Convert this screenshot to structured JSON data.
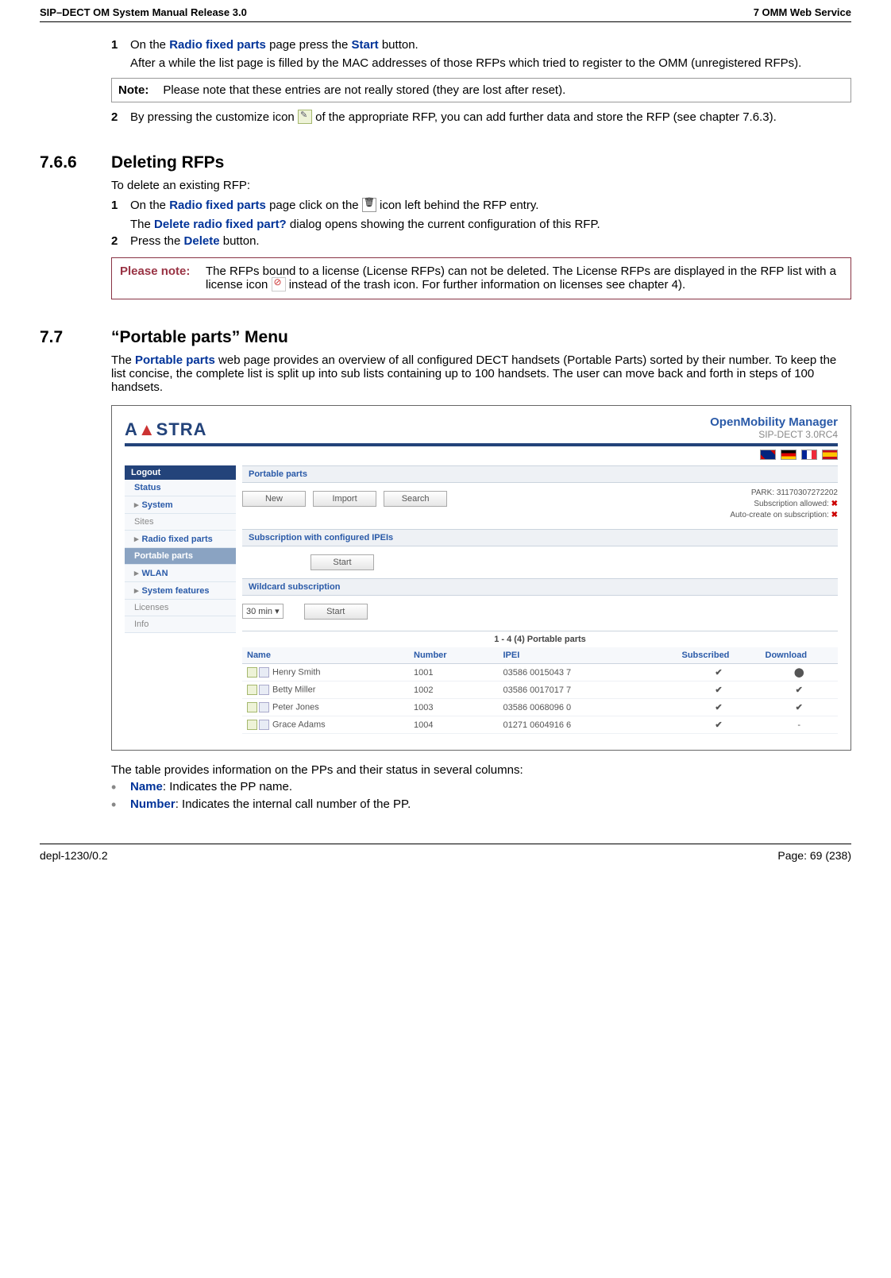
{
  "header": {
    "left": "SIP–DECT OM System Manual Release 3.0",
    "right": "7 OMM Web Service"
  },
  "step1": {
    "num": "1",
    "t1a": "On the ",
    "link1": "Radio fixed parts",
    "t1b": " page press the ",
    "link2": "Start",
    "t1c": " button.",
    "t2": "After a while the list page is filled by the MAC addresses of those RFPs which tried to register to the OMM (unregistered RFPs)."
  },
  "notebox": {
    "label": "Note:",
    "text": "Please note that these entries are not really stored (they are lost after reset)."
  },
  "step2": {
    "num": "2",
    "t1a": "By pressing the customize icon ",
    "t1b": " of the appropriate RFP, you can add further data and store the RFP (see chapter 7.6.3)."
  },
  "sec766": {
    "num": "7.6.6",
    "title": "Deleting RFPs",
    "intro": "To delete an existing RFP:"
  },
  "del1": {
    "num": "1",
    "t1a": "On the ",
    "link1": "Radio fixed parts",
    "t1b": " page click on the ",
    "t1c": " icon left behind the RFP entry.",
    "t2a": "The ",
    "link2": "Delete radio fixed part?",
    "t2b": " dialog opens showing the current configuration of this RFP."
  },
  "del2": {
    "num": "2",
    "t1a": "Press the ",
    "link1": "Delete",
    "t1b": " button."
  },
  "pleasenote": {
    "label": "Please note:",
    "t1": "The RFPs bound to a license (License RFPs) can not be deleted. The License RFPs are displayed in the RFP list with a license icon ",
    "t2": " instead of the trash icon. For further information on licenses see chapter 4)."
  },
  "sec77": {
    "num": "7.7",
    "title": "“Portable parts” Menu",
    "para_a": "The ",
    "link": "Portable parts",
    "para_b": " web page provides an overview of all configured DECT handsets (Portable Parts) sorted by their number. To keep the list concise, the complete list is split up into sub lists containing up to 100 handsets. The user can move back and forth in steps of 100 handsets."
  },
  "shot": {
    "brand_a": "A",
    "brand_b": "STRA",
    "omm1": "OpenMobility Manager",
    "omm2": "SIP-DECT 3.0RC4",
    "logout": "Logout",
    "side": {
      "status": "Status",
      "system": "System",
      "sites": "Sites",
      "rfp": "Radio fixed parts",
      "pp": "Portable parts",
      "wlan": "WLAN",
      "sf": "System features",
      "lic": "Licenses",
      "info": "Info"
    },
    "sec_pp": "Portable parts",
    "btn_new": "New",
    "btn_import": "Import",
    "btn_search": "Search",
    "park_label": "PARK: ",
    "park_val": "31170307272202",
    "sub_allowed": "Subscription allowed: ",
    "auto_create": "Auto-create on subscription: ",
    "sec_sub": "Subscription with configured IPEIs",
    "btn_start1": "Start",
    "sec_wild": "Wildcard subscription",
    "sel_30": "30 min ▾",
    "btn_start2": "Start",
    "table_title": "1 - 4 (4) Portable parts",
    "cols": {
      "name": "Name",
      "number": "Number",
      "ipei": "IPEI",
      "sub": "Subscribed",
      "dl": "Download"
    },
    "rows": [
      {
        "name": "Henry Smith",
        "number": "1001",
        "ipei": "03586 0015043 7",
        "sub": "✔",
        "dl": "⬤",
        "dlclass": "dload-wait"
      },
      {
        "name": "Betty Miller",
        "number": "1002",
        "ipei": "03586 0017017 7",
        "sub": "✔",
        "dl": "✔",
        "dlclass": "dload-ok"
      },
      {
        "name": "Peter Jones",
        "number": "1003",
        "ipei": "03586 0068096 0",
        "sub": "✔",
        "dl": "✔",
        "dlclass": "dload-ok"
      },
      {
        "name": "Grace Adams",
        "number": "1004",
        "ipei": "01271 0604916 6",
        "sub": "✔",
        "dl": "-",
        "dlclass": ""
      }
    ]
  },
  "after": {
    "intro": "The table provides information on the PPs and their status in several columns:",
    "b1_label": "Name",
    "b1_text": ": Indicates the PP name.",
    "b2_label": "Number",
    "b2_text": ": Indicates the internal call number of the PP."
  },
  "footer": {
    "left": "depl-1230/0.2",
    "right": "Page: 69 (238)"
  }
}
